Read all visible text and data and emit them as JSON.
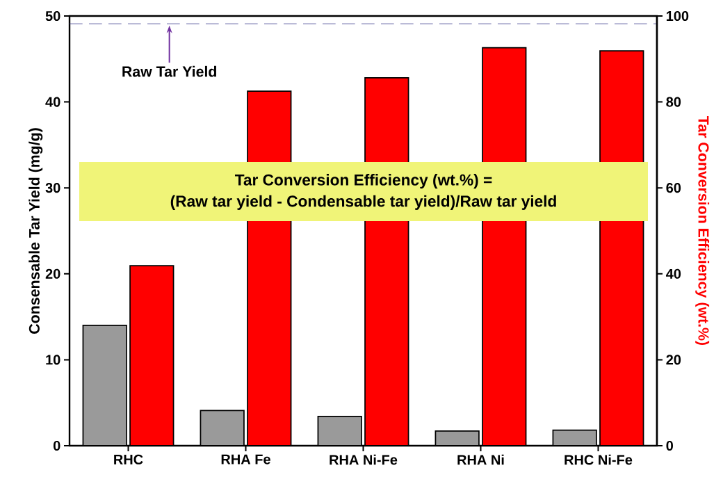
{
  "chart_data": {
    "type": "bar",
    "categories": [
      "RHC",
      "RHA  Fe",
      "RHA Ni-Fe",
      "RHA Ni",
      "RHC Ni-Fe"
    ],
    "ylabel": "Consensable Tar Yield (mg/g)",
    "y2label": "Tar Conversion Efficiency (wt.%)",
    "ylim": [
      0,
      50
    ],
    "yticks": [
      0,
      10,
      20,
      30,
      40,
      50
    ],
    "y2lim": [
      0,
      100
    ],
    "y2ticks": [
      0,
      20,
      40,
      60,
      80,
      100
    ],
    "series": [
      {
        "color": "#9a9a9a",
        "values": [
          14.0,
          4.1,
          3.4,
          1.7,
          1.8
        ]
      },
      {
        "color": "#ff0000",
        "axis": "y2",
        "values": [
          41.9,
          82.5,
          85.6,
          92.6,
          91.9
        ]
      }
    ],
    "ref_lines": [
      {
        "axis": "y",
        "value": 49.1,
        "label": "Raw Tar Yield",
        "color": "#3a3a8c",
        "line_style": "dashed"
      }
    ],
    "annotations": [
      "Tar Conversion Efficiency (wt.%) =",
      "(Raw tar yield - Condensable tar yield)/Raw tar yield"
    ]
  }
}
